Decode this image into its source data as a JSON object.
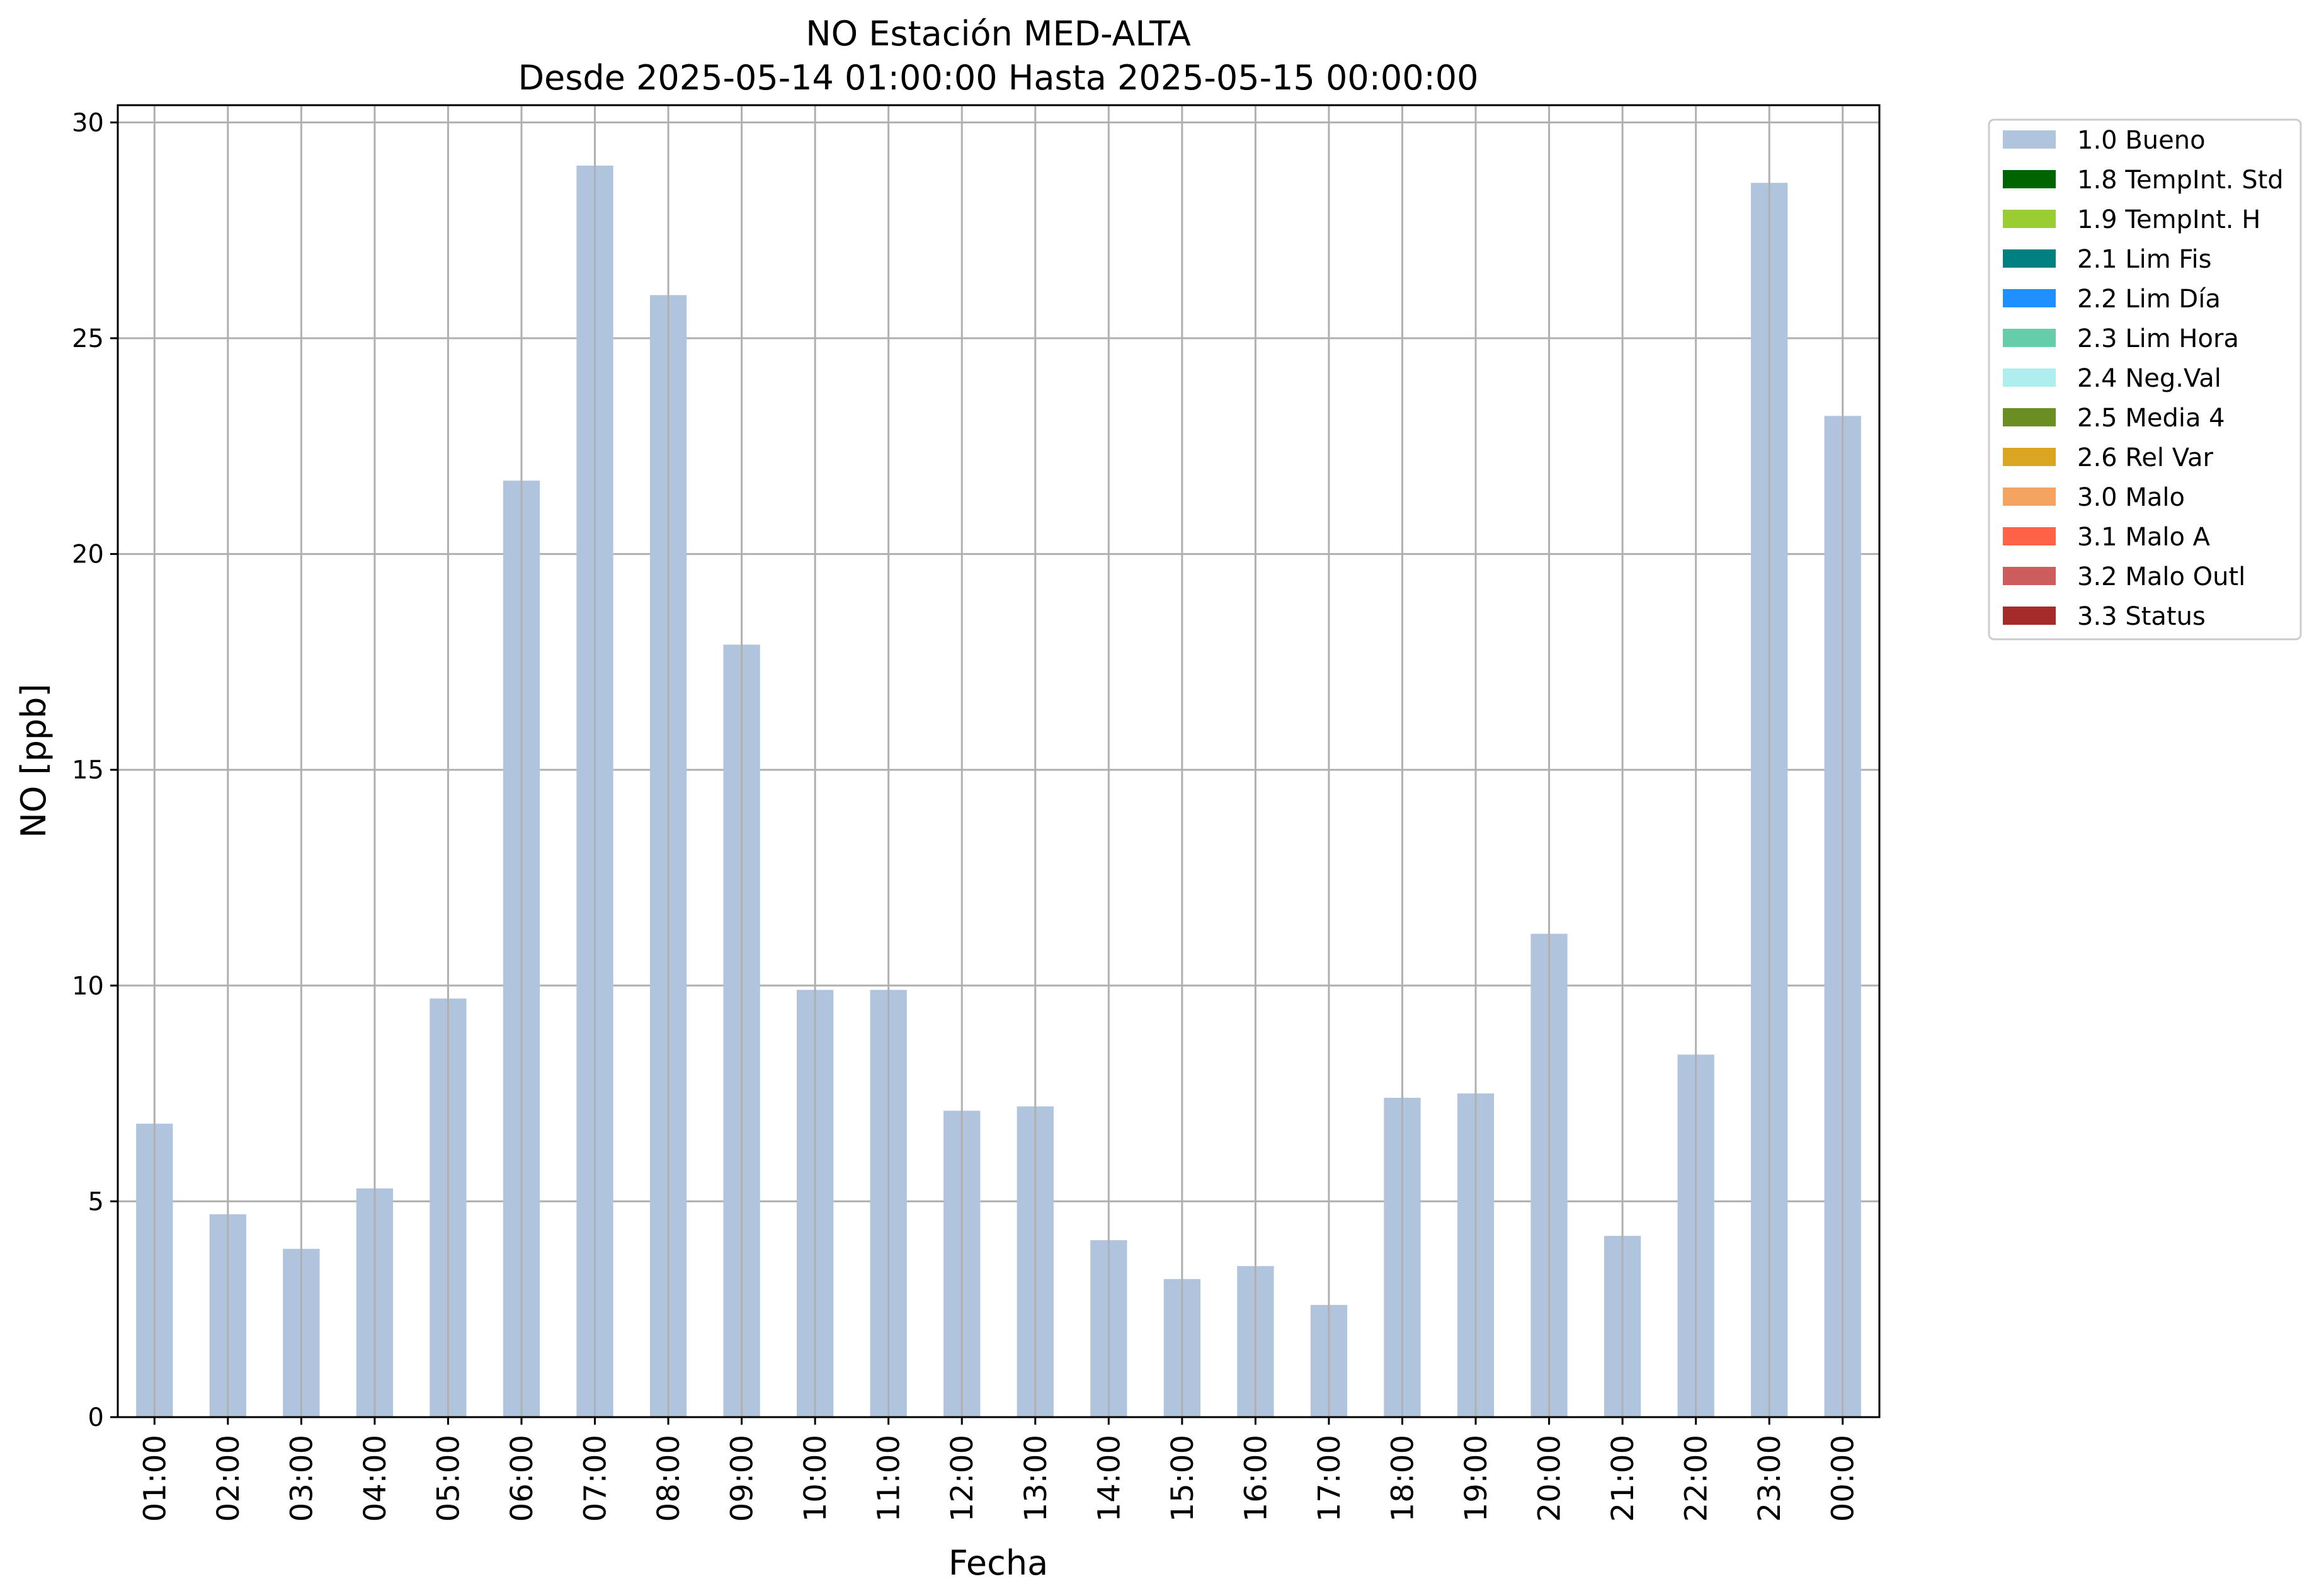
{
  "chart_data": {
    "type": "bar",
    "title": "NO Estación MED-ALTA",
    "subtitle": "Desde 2025-05-14 01:00:00 Hasta 2025-05-15 00:00:00",
    "xlabel": "Fecha",
    "ylabel": "NO [ppb]",
    "ylim": [
      0,
      30.4
    ],
    "yticks": [
      0,
      5,
      10,
      15,
      20,
      25,
      30
    ],
    "grid": true,
    "legend_position": "outside-top-right",
    "categories": [
      "01:00",
      "02:00",
      "03:00",
      "04:00",
      "05:00",
      "06:00",
      "07:00",
      "08:00",
      "09:00",
      "10:00",
      "11:00",
      "12:00",
      "13:00",
      "14:00",
      "15:00",
      "16:00",
      "17:00",
      "18:00",
      "19:00",
      "20:00",
      "21:00",
      "22:00",
      "23:00",
      "00:00"
    ],
    "series": [
      {
        "name": "1.0 Bueno",
        "color": "#b0c4de",
        "values": [
          6.8,
          4.7,
          3.9,
          5.3,
          9.7,
          21.7,
          29.0,
          26.0,
          17.9,
          9.9,
          9.9,
          7.1,
          7.2,
          4.1,
          3.2,
          3.5,
          2.6,
          7.4,
          7.5,
          11.2,
          4.2,
          8.4,
          28.6,
          23.2
        ]
      }
    ],
    "legend": [
      {
        "label": "1.0 Bueno",
        "color": "#b0c4de"
      },
      {
        "label": "1.8 TempInt. Std",
        "color": "#006400"
      },
      {
        "label": "1.9 TempInt. H",
        "color": "#9acd32"
      },
      {
        "label": "2.1 Lim Fis",
        "color": "#008080"
      },
      {
        "label": "2.2 Lim Día",
        "color": "#1e90ff"
      },
      {
        "label": "2.3 Lim Hora",
        "color": "#66cdaa"
      },
      {
        "label": "2.4 Neg.Val",
        "color": "#afeeee"
      },
      {
        "label": "2.5 Media 4",
        "color": "#6b8e23"
      },
      {
        "label": "2.6 Rel Var",
        "color": "#daa520"
      },
      {
        "label": "3.0 Malo",
        "color": "#f4a460"
      },
      {
        "label": "3.1 Malo A",
        "color": "#ff6347"
      },
      {
        "label": "3.2 Malo Outl",
        "color": "#cd5c5c"
      },
      {
        "label": "3.3 Status",
        "color": "#a52a2a"
      }
    ]
  }
}
